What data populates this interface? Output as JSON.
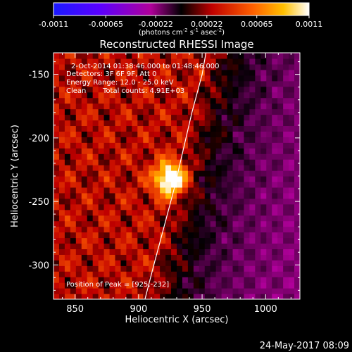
{
  "colorbar": {
    "ticks": [
      "-0.0011",
      "-0.00065",
      "-0.00022",
      "0.00022",
      "0.00065",
      "0.0011"
    ],
    "units": "(photons cm",
    "units_exp1": "-2",
    "units_s": " s",
    "units_exp2": "-1",
    "units_asec": " asec",
    "units_exp3": "-2",
    "units_close": ")",
    "min": -0.0011,
    "max": 0.0011
  },
  "info": {
    "line1": "2-Oct-2014 01:38:46.000 to 01:48:46.000",
    "line2": "Detectors: 3F 6F 9F, Att 0",
    "line3": "Energy Range: 12.0 - 25.0 keV",
    "line4_a": "Clean",
    "line4_b": "Total counts: 4.91E+03",
    "peak": "Position of Peak = [925,-232]"
  },
  "footer": {
    "date": "24-May-2017 08:09"
  },
  "colors": {
    "background": "#000000",
    "text": "#ffffff",
    "limb": "#ffffff"
  },
  "chart_data": {
    "type": "heatmap",
    "title": "Reconstructed RHESSI Image",
    "xlabel": "Heliocentric X (arcsec)",
    "ylabel": "Heliocentric Y (arcsec)",
    "xlim": [
      833,
      1027
    ],
    "ylim": [
      -327,
      -133
    ],
    "xticks": [
      850,
      900,
      950,
      1000
    ],
    "yticks": [
      -150,
      -200,
      -250,
      -300
    ],
    "xtick_labels": [
      "850",
      "900",
      "950",
      "1000"
    ],
    "ytick_labels": [
      "-150",
      "-200",
      "-250",
      "-300"
    ],
    "peak": {
      "x": 925,
      "y": -232,
      "value": 0.0011
    },
    "solar_limb": [
      [
        905,
        -327
      ],
      [
        912,
        -300
      ],
      [
        920,
        -270
      ],
      [
        928,
        -240
      ],
      [
        935,
        -210
      ],
      [
        942,
        -180
      ],
      [
        950,
        -150
      ],
      [
        953,
        -133
      ]
    ],
    "value_range": [
      -0.0011,
      0.0011
    ],
    "colormap": "rhessi-flame"
  }
}
